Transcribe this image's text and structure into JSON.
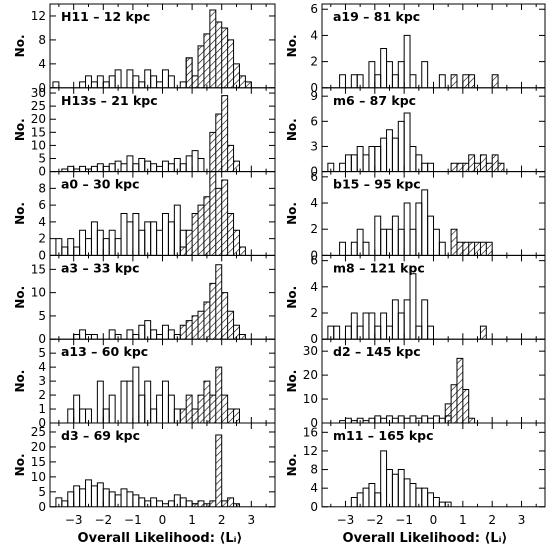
{
  "colors": {
    "axis": "#000000",
    "hatch": "#000000",
    "background": "#ffffff"
  },
  "figure": {
    "xlabel": "Overall Likelihood: ⟨Lᵢ⟩",
    "ylabel": "No."
  },
  "chart_data": [
    {
      "type": "histogram",
      "column": "left",
      "row": 0,
      "label": "H11 – 12 kpc",
      "xlim": [
        -3.8,
        3.8
      ],
      "ylim": [
        0,
        14
      ],
      "yticks": [
        0,
        4,
        8,
        12
      ],
      "bin_width": 0.2,
      "open_bins": [
        [
          -3.7,
          1
        ],
        [
          -2.8,
          1
        ],
        [
          -2.6,
          2
        ],
        [
          -2.4,
          1
        ],
        [
          -2.2,
          2
        ],
        [
          -2.0,
          1
        ],
        [
          -1.8,
          2
        ],
        [
          -1.6,
          3
        ],
        [
          -1.2,
          3
        ],
        [
          -1.0,
          2
        ],
        [
          -0.8,
          1
        ],
        [
          -0.6,
          3
        ],
        [
          -0.4,
          2
        ],
        [
          -0.2,
          1
        ],
        [
          0.0,
          3
        ],
        [
          0.2,
          2
        ],
        [
          0.6,
          1
        ],
        [
          0.8,
          5
        ]
      ],
      "hatched_bins": [
        [
          0.8,
          5
        ],
        [
          1.0,
          2
        ],
        [
          1.2,
          7
        ],
        [
          1.4,
          9
        ],
        [
          1.6,
          13
        ],
        [
          1.8,
          11
        ],
        [
          2.0,
          10
        ],
        [
          2.2,
          8
        ],
        [
          2.4,
          4
        ],
        [
          2.6,
          2
        ],
        [
          2.8,
          1
        ]
      ]
    },
    {
      "type": "histogram",
      "column": "left",
      "row": 1,
      "label": "H13s – 21 kpc",
      "xlim": [
        -3.8,
        3.8
      ],
      "ylim": [
        0,
        32
      ],
      "yticks": [
        0,
        5,
        10,
        15,
        20,
        25,
        30
      ],
      "bin_width": 0.2,
      "open_bins": [
        [
          -3.4,
          1
        ],
        [
          -3.2,
          2
        ],
        [
          -3.0,
          1
        ],
        [
          -2.8,
          2
        ],
        [
          -2.6,
          1
        ],
        [
          -2.4,
          2
        ],
        [
          -2.2,
          3
        ],
        [
          -2.0,
          2
        ],
        [
          -1.8,
          3
        ],
        [
          -1.6,
          4
        ],
        [
          -1.4,
          3
        ],
        [
          -1.2,
          6
        ],
        [
          -1.0,
          3
        ],
        [
          -0.8,
          5
        ],
        [
          -0.6,
          4
        ],
        [
          -0.4,
          3
        ],
        [
          -0.2,
          2
        ],
        [
          0.0,
          4
        ],
        [
          0.2,
          3
        ],
        [
          0.4,
          5
        ],
        [
          0.6,
          3
        ],
        [
          0.8,
          6
        ],
        [
          1.0,
          8
        ],
        [
          1.2,
          5
        ]
      ],
      "hatched_bins": [
        [
          1.6,
          15
        ],
        [
          1.8,
          22
        ],
        [
          2.0,
          29
        ],
        [
          2.2,
          10
        ],
        [
          2.4,
          4
        ]
      ]
    },
    {
      "type": "histogram",
      "column": "left",
      "row": 2,
      "label": "a0 – 30 kpc",
      "xlim": [
        -3.8,
        3.8
      ],
      "ylim": [
        0,
        10
      ],
      "yticks": [
        0,
        2,
        4,
        6,
        8
      ],
      "bin_width": 0.2,
      "open_bins": [
        [
          -3.6,
          2
        ],
        [
          -3.4,
          1
        ],
        [
          -3.2,
          2
        ],
        [
          -3.0,
          1
        ],
        [
          -2.8,
          3
        ],
        [
          -2.6,
          2
        ],
        [
          -2.4,
          4
        ],
        [
          -2.2,
          3
        ],
        [
          -2.0,
          2
        ],
        [
          -1.8,
          3
        ],
        [
          -1.6,
          2
        ],
        [
          -1.4,
          5
        ],
        [
          -1.2,
          4
        ],
        [
          -1.0,
          5
        ],
        [
          -0.8,
          3
        ],
        [
          -0.6,
          4
        ],
        [
          -0.4,
          4
        ],
        [
          -0.2,
          3
        ],
        [
          0.0,
          5
        ],
        [
          0.2,
          4
        ],
        [
          0.4,
          6
        ],
        [
          0.6,
          3
        ]
      ],
      "hatched_bins": [
        [
          0.6,
          1
        ],
        [
          0.8,
          3
        ],
        [
          1.0,
          5
        ],
        [
          1.2,
          6
        ],
        [
          1.4,
          7
        ],
        [
          1.6,
          10
        ],
        [
          1.8,
          8
        ],
        [
          2.0,
          9
        ],
        [
          2.2,
          5
        ],
        [
          2.4,
          3
        ],
        [
          2.6,
          1
        ]
      ]
    },
    {
      "type": "histogram",
      "column": "left",
      "row": 3,
      "label": "a3 – 33 kpc",
      "xlim": [
        -3.8,
        3.8
      ],
      "ylim": [
        0,
        18
      ],
      "yticks": [
        0,
        5,
        10,
        15
      ],
      "bin_width": 0.2,
      "open_bins": [
        [
          -3.0,
          1
        ],
        [
          -2.8,
          2
        ],
        [
          -2.6,
          1
        ],
        [
          -2.4,
          1
        ],
        [
          -1.8,
          2
        ],
        [
          -1.6,
          1
        ],
        [
          -1.2,
          2
        ],
        [
          -1.0,
          1
        ],
        [
          -0.8,
          3
        ],
        [
          -0.6,
          4
        ],
        [
          -0.4,
          2
        ],
        [
          -0.2,
          1
        ],
        [
          0.0,
          3
        ],
        [
          0.2,
          2
        ],
        [
          0.4,
          1
        ]
      ],
      "hatched_bins": [
        [
          0.6,
          3
        ],
        [
          0.8,
          4
        ],
        [
          1.0,
          5
        ],
        [
          1.2,
          6
        ],
        [
          1.4,
          8
        ],
        [
          1.6,
          12
        ],
        [
          1.8,
          16
        ],
        [
          2.0,
          10
        ],
        [
          2.2,
          6
        ],
        [
          2.4,
          3
        ],
        [
          2.6,
          1
        ]
      ]
    },
    {
      "type": "histogram",
      "column": "left",
      "row": 4,
      "label": "a13 – 60 kpc",
      "xlim": [
        -3.8,
        3.8
      ],
      "ylim": [
        0,
        6
      ],
      "yticks": [
        0,
        1,
        2,
        3,
        4,
        5
      ],
      "bin_width": 0.2,
      "open_bins": [
        [
          -3.2,
          1
        ],
        [
          -3.0,
          2
        ],
        [
          -2.8,
          1
        ],
        [
          -2.6,
          1
        ],
        [
          -2.2,
          3
        ],
        [
          -2.0,
          1
        ],
        [
          -1.8,
          2
        ],
        [
          -1.4,
          3
        ],
        [
          -1.2,
          3
        ],
        [
          -1.0,
          4
        ],
        [
          -0.8,
          2
        ],
        [
          -0.6,
          3
        ],
        [
          -0.4,
          1
        ],
        [
          -0.2,
          2
        ],
        [
          0.0,
          3
        ],
        [
          0.2,
          2
        ],
        [
          0.4,
          1
        ]
      ],
      "hatched_bins": [
        [
          0.6,
          1
        ],
        [
          0.8,
          2
        ],
        [
          1.0,
          1
        ],
        [
          1.2,
          2
        ],
        [
          1.4,
          3
        ],
        [
          1.6,
          2
        ],
        [
          1.8,
          4
        ],
        [
          2.0,
          2
        ],
        [
          2.2,
          1
        ],
        [
          2.4,
          1
        ]
      ]
    },
    {
      "type": "histogram",
      "column": "left",
      "row": 5,
      "label": "d3 – 69 kpc",
      "xlim": [
        -3.8,
        3.8
      ],
      "ylim": [
        0,
        28
      ],
      "yticks": [
        0,
        5,
        10,
        15,
        20,
        25
      ],
      "bin_width": 0.2,
      "open_bins": [
        [
          -3.6,
          3
        ],
        [
          -3.4,
          2
        ],
        [
          -3.2,
          5
        ],
        [
          -3.0,
          7
        ],
        [
          -2.8,
          6
        ],
        [
          -2.6,
          9
        ],
        [
          -2.4,
          7
        ],
        [
          -2.2,
          8
        ],
        [
          -2.0,
          6
        ],
        [
          -1.8,
          5
        ],
        [
          -1.6,
          4
        ],
        [
          -1.4,
          6
        ],
        [
          -1.2,
          5
        ],
        [
          -1.0,
          4
        ],
        [
          -0.8,
          3
        ],
        [
          -0.6,
          2
        ],
        [
          -0.4,
          3
        ],
        [
          -0.2,
          2
        ],
        [
          0.0,
          1
        ],
        [
          0.2,
          2
        ],
        [
          0.4,
          4
        ],
        [
          0.6,
          3
        ],
        [
          0.8,
          2
        ],
        [
          1.0,
          1
        ]
      ],
      "hatched_bins": [
        [
          1.0,
          1
        ],
        [
          1.2,
          2
        ],
        [
          1.4,
          1
        ],
        [
          1.6,
          2
        ],
        [
          1.8,
          24
        ],
        [
          2.0,
          2
        ],
        [
          2.2,
          3
        ],
        [
          2.4,
          1
        ]
      ]
    },
    {
      "type": "histogram",
      "column": "right",
      "row": 0,
      "label": "a19 – 81 kpc",
      "xlim": [
        -3.8,
        3.8
      ],
      "ylim": [
        0,
        6.4
      ],
      "yticks": [
        0,
        2,
        4,
        6
      ],
      "bin_width": 0.2,
      "open_bins": [
        [
          -3.2,
          1
        ],
        [
          -2.8,
          1
        ],
        [
          -2.6,
          1
        ],
        [
          -2.2,
          2
        ],
        [
          -2.0,
          1
        ],
        [
          -1.8,
          3
        ],
        [
          -1.6,
          2
        ],
        [
          -1.4,
          1
        ],
        [
          -1.2,
          2
        ],
        [
          -1.0,
          4
        ],
        [
          -0.8,
          1
        ],
        [
          -0.4,
          2
        ],
        [
          0.2,
          1
        ]
      ],
      "hatched_bins": [
        [
          0.6,
          1
        ],
        [
          1.0,
          1
        ],
        [
          1.2,
          1
        ],
        [
          2.0,
          1
        ]
      ]
    },
    {
      "type": "histogram",
      "column": "right",
      "row": 1,
      "label": "m6 – 87 kpc",
      "xlim": [
        -3.8,
        3.8
      ],
      "ylim": [
        0,
        10
      ],
      "yticks": [
        0,
        3,
        6,
        9
      ],
      "bin_width": 0.2,
      "open_bins": [
        [
          -3.6,
          1
        ],
        [
          -3.2,
          1
        ],
        [
          -3.0,
          2
        ],
        [
          -2.8,
          2
        ],
        [
          -2.6,
          3
        ],
        [
          -2.4,
          2
        ],
        [
          -2.2,
          3
        ],
        [
          -2.0,
          3
        ],
        [
          -1.8,
          4
        ],
        [
          -1.6,
          5
        ],
        [
          -1.4,
          4
        ],
        [
          -1.2,
          6
        ],
        [
          -1.0,
          7
        ],
        [
          -0.8,
          3
        ],
        [
          -0.6,
          2
        ],
        [
          -0.4,
          1
        ],
        [
          -0.2,
          1
        ]
      ],
      "hatched_bins": [
        [
          0.6,
          1
        ],
        [
          0.8,
          1
        ],
        [
          1.0,
          1
        ],
        [
          1.2,
          2
        ],
        [
          1.4,
          1
        ],
        [
          1.6,
          2
        ],
        [
          1.8,
          1
        ],
        [
          2.0,
          2
        ],
        [
          2.2,
          1
        ]
      ]
    },
    {
      "type": "histogram",
      "column": "right",
      "row": 2,
      "label": "b15 – 95 kpc",
      "xlim": [
        -3.8,
        3.8
      ],
      "ylim": [
        0,
        6.4
      ],
      "yticks": [
        0,
        2,
        4,
        6
      ],
      "bin_width": 0.2,
      "open_bins": [
        [
          -3.2,
          1
        ],
        [
          -2.8,
          1
        ],
        [
          -2.6,
          2
        ],
        [
          -2.4,
          1
        ],
        [
          -2.0,
          3
        ],
        [
          -1.8,
          2
        ],
        [
          -1.6,
          2
        ],
        [
          -1.4,
          3
        ],
        [
          -1.2,
          2
        ],
        [
          -1.0,
          4
        ],
        [
          -0.8,
          2
        ],
        [
          -0.6,
          4
        ],
        [
          -0.4,
          5
        ],
        [
          -0.2,
          3
        ],
        [
          0.0,
          2
        ],
        [
          0.2,
          1
        ]
      ],
      "hatched_bins": [
        [
          0.6,
          2
        ],
        [
          0.8,
          1
        ],
        [
          1.0,
          1
        ],
        [
          1.2,
          1
        ],
        [
          1.4,
          1
        ],
        [
          1.6,
          1
        ],
        [
          1.8,
          1
        ]
      ]
    },
    {
      "type": "histogram",
      "column": "right",
      "row": 3,
      "label": "m8 – 121 kpc",
      "xlim": [
        -3.8,
        3.8
      ],
      "ylim": [
        0,
        6.4
      ],
      "yticks": [
        0,
        2,
        4,
        6
      ],
      "bin_width": 0.2,
      "open_bins": [
        [
          -3.6,
          1
        ],
        [
          -3.4,
          1
        ],
        [
          -3.0,
          1
        ],
        [
          -2.8,
          2
        ],
        [
          -2.6,
          1
        ],
        [
          -2.4,
          2
        ],
        [
          -2.2,
          2
        ],
        [
          -2.0,
          1
        ],
        [
          -1.8,
          2
        ],
        [
          -1.6,
          1
        ],
        [
          -1.4,
          3
        ],
        [
          -1.2,
          2
        ],
        [
          -1.0,
          3
        ],
        [
          -0.8,
          5
        ],
        [
          -0.6,
          1
        ],
        [
          -0.4,
          3
        ],
        [
          -0.2,
          1
        ]
      ],
      "hatched_bins": [
        [
          1.6,
          1
        ]
      ]
    },
    {
      "type": "histogram",
      "column": "right",
      "row": 4,
      "label": "d2 – 145 kpc",
      "xlim": [
        -3.8,
        3.8
      ],
      "ylim": [
        0,
        35
      ],
      "yticks": [
        0,
        10,
        20,
        30
      ],
      "bin_width": 0.2,
      "open_bins": [
        [
          -3.2,
          1
        ],
        [
          -3.0,
          2
        ],
        [
          -2.8,
          1
        ],
        [
          -2.6,
          2
        ],
        [
          -2.4,
          1
        ],
        [
          -2.2,
          2
        ],
        [
          -2.0,
          3
        ],
        [
          -1.8,
          2
        ],
        [
          -1.6,
          3
        ],
        [
          -1.4,
          2
        ],
        [
          -1.2,
          3
        ],
        [
          -1.0,
          2
        ],
        [
          -0.8,
          3
        ],
        [
          -0.6,
          2
        ],
        [
          -0.4,
          3
        ],
        [
          -0.2,
          2
        ],
        [
          0.0,
          3
        ],
        [
          0.2,
          2
        ],
        [
          0.4,
          3
        ]
      ],
      "hatched_bins": [
        [
          0.4,
          8
        ],
        [
          0.6,
          16
        ],
        [
          0.8,
          27
        ],
        [
          1.0,
          14
        ],
        [
          1.2,
          2
        ]
      ]
    },
    {
      "type": "histogram",
      "column": "right",
      "row": 5,
      "label": "m11 – 165 kpc",
      "xlim": [
        -3.8,
        3.8
      ],
      "ylim": [
        0,
        18
      ],
      "yticks": [
        0,
        4,
        8,
        12,
        16
      ],
      "bin_width": 0.2,
      "open_bins": [
        [
          -2.8,
          2
        ],
        [
          -2.6,
          3
        ],
        [
          -2.4,
          4
        ],
        [
          -2.2,
          5
        ],
        [
          -2.0,
          3
        ],
        [
          -1.8,
          12
        ],
        [
          -1.6,
          8
        ],
        [
          -1.4,
          7
        ],
        [
          -1.2,
          8
        ],
        [
          -1.0,
          6
        ],
        [
          -0.8,
          5
        ],
        [
          -0.6,
          4
        ],
        [
          -0.4,
          4
        ],
        [
          -0.2,
          3
        ],
        [
          0.0,
          2
        ],
        [
          0.2,
          1
        ],
        [
          0.4,
          1
        ]
      ],
      "hatched_bins": []
    }
  ],
  "xticks": [
    -3,
    -2,
    -1,
    0,
    1,
    2,
    3
  ]
}
